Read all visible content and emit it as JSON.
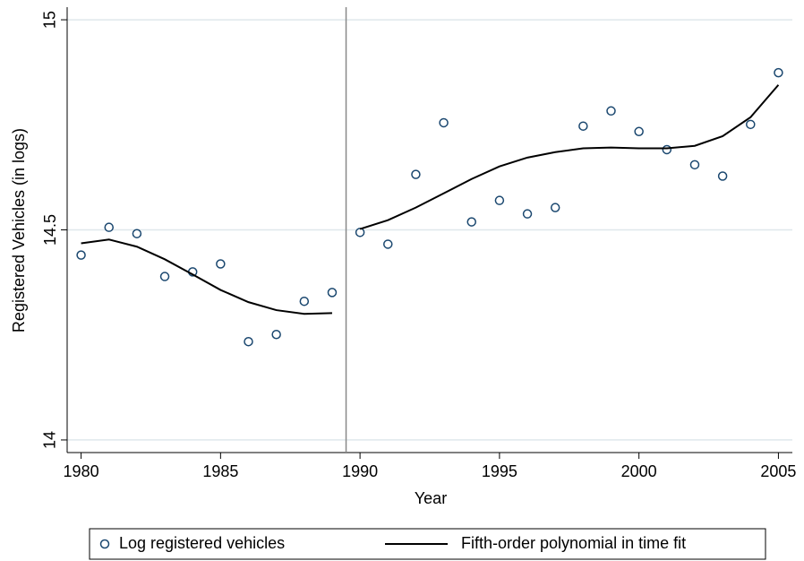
{
  "chart_data": {
    "type": "scatter",
    "x_label": "Year",
    "y_label": "Registered Vehicles (in logs)",
    "x": [
      1980,
      1981,
      1982,
      1983,
      1984,
      1985,
      1986,
      1987,
      1988,
      1989,
      1990,
      1991,
      1992,
      1993,
      1994,
      1995,
      1996,
      1997,
      1998,
      1999,
      2000,
      2001,
      2002,
      2003,
      2004,
      2005
    ],
    "series": [
      {
        "name": "Log registered vehicles",
        "style": "markers",
        "color": "#1a476f",
        "values": [
          14.44,
          14.506,
          14.491,
          14.389,
          14.4,
          14.419,
          14.234,
          14.251,
          14.33,
          14.351,
          14.494,
          14.466,
          14.632,
          14.755,
          14.519,
          14.57,
          14.538,
          14.553,
          14.747,
          14.783,
          14.734,
          14.691,
          14.655,
          14.628,
          14.751,
          14.874
        ]
      },
      {
        "name": "Fifth-order polynomial in time fit",
        "style": "line",
        "color": "#000000",
        "values": [
          14.468,
          14.477,
          14.46,
          14.43,
          14.394,
          14.357,
          14.328,
          14.309,
          14.3,
          14.302,
          14.502,
          14.523,
          14.553,
          14.587,
          14.621,
          14.651,
          14.672,
          14.685,
          14.694,
          14.696,
          14.694,
          14.694,
          14.7,
          14.723,
          14.768,
          14.845
        ]
      }
    ],
    "break_x": 1989.5,
    "xlim": [
      1979.5,
      2005.5
    ],
    "xticks": [
      1980,
      1985,
      1990,
      1995,
      2000,
      2005
    ],
    "ylim": [
      13.97,
      15.03
    ],
    "yticks": [
      14,
      14.5,
      15
    ],
    "grid": true,
    "legend": "bottom"
  }
}
